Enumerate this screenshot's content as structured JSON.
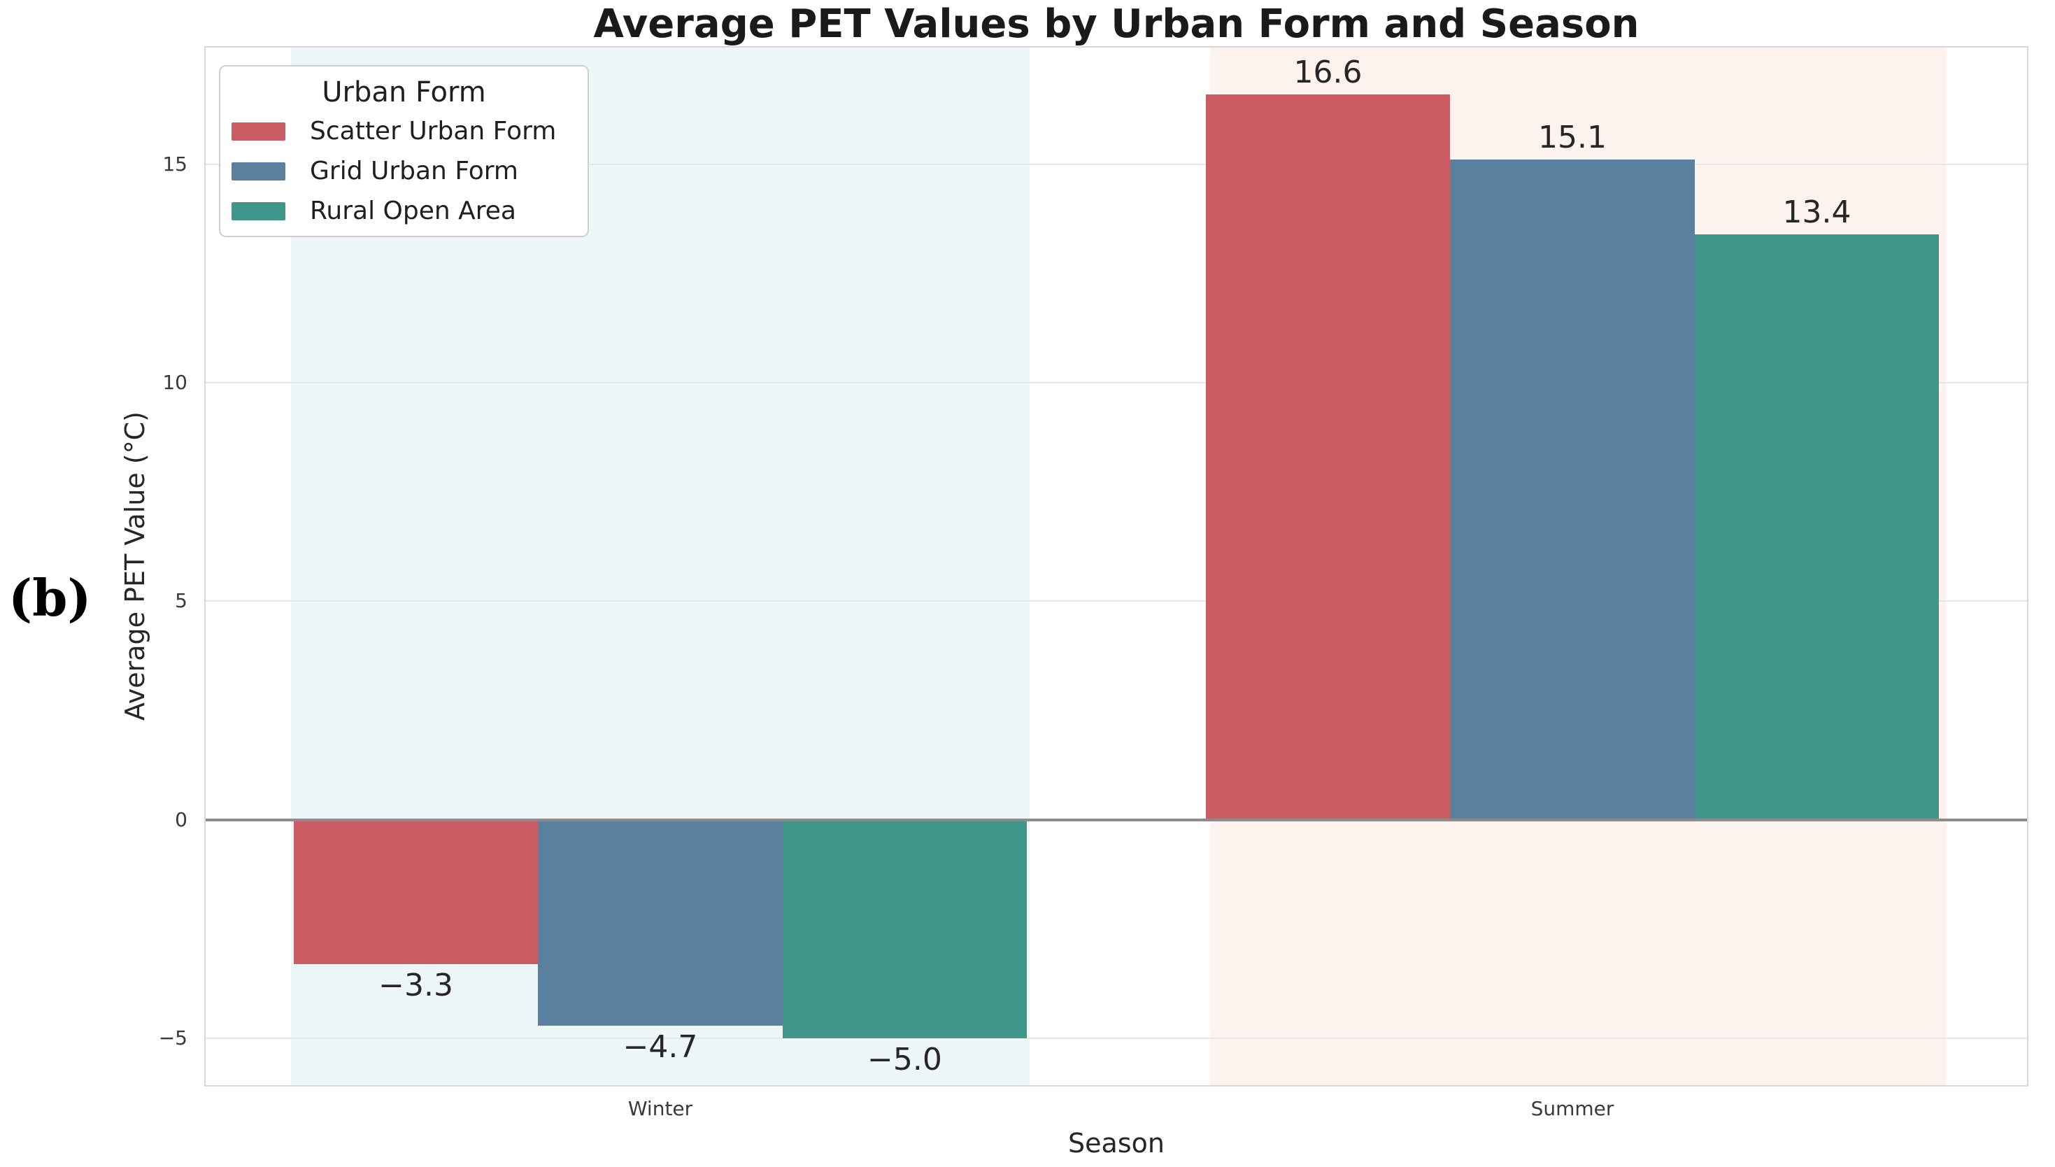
{
  "panel": {
    "label": "(b)"
  },
  "chart_data": {
    "type": "bar",
    "title": "Average PET Values by Urban Form and Season",
    "xlabel": "Season",
    "ylabel": "Average PET Value (°C)",
    "categories": [
      "Winter",
      "Summer"
    ],
    "series": [
      {
        "name": "Scatter Urban Form",
        "color": "#cb5c64",
        "values": [
          -3.3,
          16.6
        ]
      },
      {
        "name": "Grid Urban Form",
        "color": "#5a80a0",
        "values": [
          -4.7,
          15.1
        ]
      },
      {
        "name": "Rural Open Area",
        "color": "#41968c",
        "values": [
          -5.0,
          13.4
        ]
      }
    ],
    "value_labels": [
      "−3.3",
      "−4.7",
      "−5.0",
      "16.6",
      "15.1",
      "13.4"
    ],
    "yticks": [
      -5,
      0,
      5,
      10,
      15
    ],
    "ylim": [
      -6.1,
      17.7
    ],
    "xlim": [
      -0.5,
      1.5
    ],
    "bar_width": 0.268,
    "grid": "horizontal",
    "legend": {
      "title": "Urban Form",
      "position": "upper-left"
    },
    "category_bands": [
      {
        "category": "Winter",
        "color": "#eef7f8",
        "span": [
          -0.405,
          0.405
        ]
      },
      {
        "category": "Summer",
        "color": "#fdf2ee",
        "span": [
          0.603,
          1.41
        ]
      }
    ],
    "zero_line": {
      "y": 0,
      "color": "#8c8c8c"
    },
    "colors": {
      "grid": "#e7e7e7",
      "spine": "#d9d9d9",
      "title_text": "#1a1a1a",
      "tick_text": "#3a3a3a",
      "background": "#ffffff"
    }
  }
}
